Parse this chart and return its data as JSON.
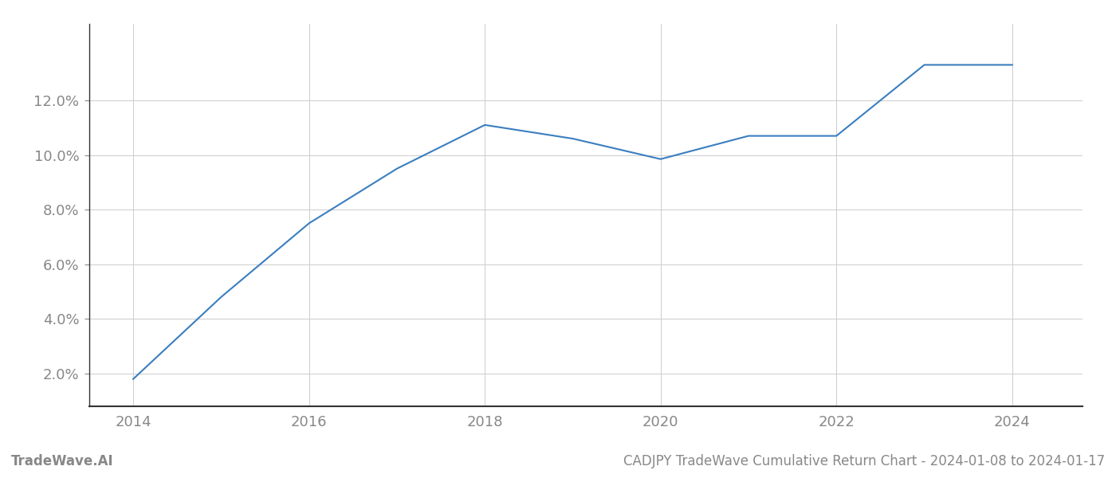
{
  "x_years": [
    2014,
    2015,
    2016,
    2017,
    2018,
    2019,
    2020,
    2021,
    2022,
    2023,
    2024
  ],
  "y_values": [
    1.8,
    4.8,
    7.5,
    9.5,
    11.1,
    10.6,
    9.85,
    10.7,
    10.7,
    13.3,
    13.3
  ],
  "line_color": "#3a7ebf",
  "line_width": 1.5,
  "background_color": "#ffffff",
  "grid_color": "#cccccc",
  "footer_left": "TradeWave.AI",
  "footer_right": "CADJPY TradeWave Cumulative Return Chart - 2024-01-08 to 2024-01-17",
  "xlim": [
    2013.5,
    2024.8
  ],
  "ylim": [
    0.8,
    14.8
  ],
  "yticks": [
    2.0,
    4.0,
    6.0,
    8.0,
    10.0,
    12.0
  ],
  "xticks": [
    2014,
    2016,
    2018,
    2020,
    2022,
    2024
  ],
  "tick_label_color": "#888888",
  "tick_fontsize": 13,
  "footer_fontsize": 12,
  "left_spine_color": "#333333",
  "bottom_spine_color": "#333333"
}
